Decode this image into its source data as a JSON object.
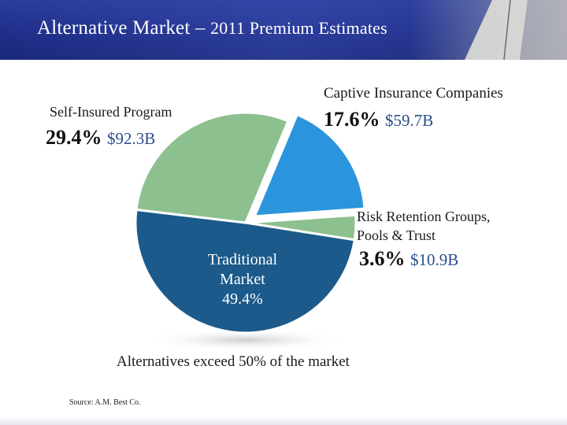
{
  "header": {
    "title_main": "Alternative Market",
    "title_dash": " – ",
    "title_rest": "2011 Premium Estimates"
  },
  "labels": {
    "self_insured": {
      "name": "Self-Insured Program",
      "pct": "29.4%",
      "amount": "$92.3B"
    },
    "captive": {
      "name": "Captive Insurance Companies",
      "pct": "17.6%",
      "amount": "$59.7B"
    },
    "risk_retention": {
      "name_line1": "Risk Retention Groups,",
      "name_line2": "Pools & Trust",
      "pct": "3.6%",
      "amount": "$10.9B"
    },
    "traditional": {
      "line1": "Traditional",
      "line2": "Market",
      "line3": "49.4%"
    }
  },
  "caption": "Alternatives exceed 50% of the market",
  "source": "Source:  A.M. Best Co.",
  "chart_data": {
    "type": "pie",
    "title": "Alternative Market – 2011 Premium Estimates",
    "series": [
      {
        "label": "Traditional Market",
        "value": 49.4,
        "color": "#1b5a8a"
      },
      {
        "label": "Self-Insured Program",
        "value": 29.4,
        "amount": "$92.3B",
        "color": "#8dc08f"
      },
      {
        "label": "Captive Insurance Companies",
        "value": 17.6,
        "amount": "$59.7B",
        "color": "#2a95dc"
      },
      {
        "label": "Risk Retention Groups, Pools & Trust",
        "value": 3.6,
        "amount": "$10.9B",
        "color": "#8dc08f"
      }
    ],
    "exploded": [
      "Captive Insurance Companies"
    ]
  }
}
